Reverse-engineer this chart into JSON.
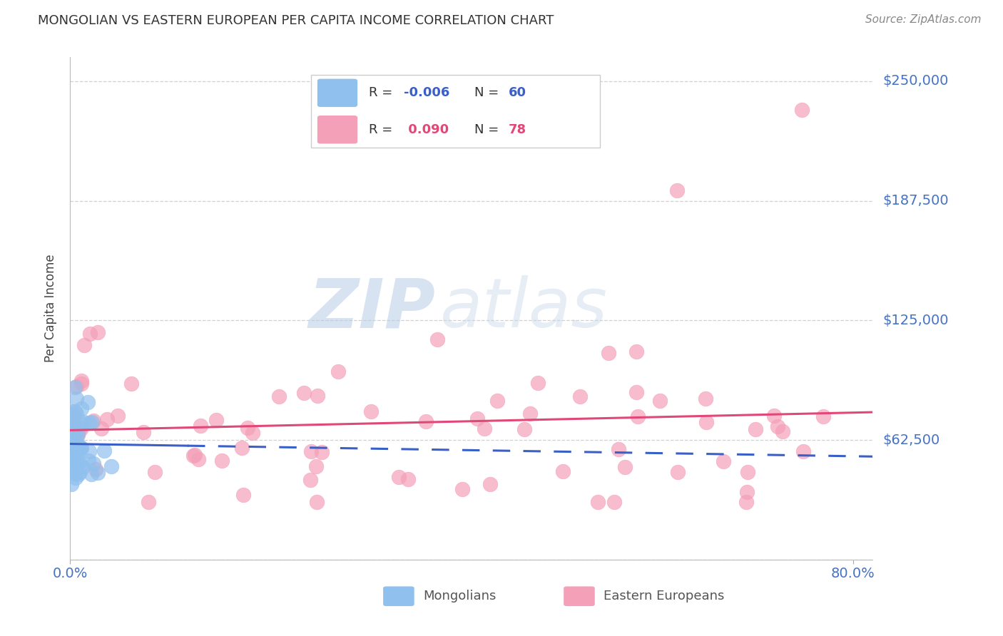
{
  "title": "MONGOLIAN VS EASTERN EUROPEAN PER CAPITA INCOME CORRELATION CHART",
  "source": "Source: ZipAtlas.com",
  "ylabel": "Per Capita Income",
  "ytick_vals": [
    0,
    62500,
    125000,
    187500,
    250000
  ],
  "ytick_labels": [
    "",
    "$62,500",
    "$125,000",
    "$187,500",
    "$250,000"
  ],
  "ylim": [
    0,
    262500
  ],
  "xlim": [
    0.0,
    0.82
  ],
  "mongolian_color": "#90C0ED",
  "eastern_color": "#F4A0B8",
  "mongolian_trend_color": "#3A5FC8",
  "eastern_trend_color": "#E04878",
  "r_mongolian": -0.006,
  "r_eastern": 0.09,
  "n_mongolian": 60,
  "n_eastern": 78,
  "watermark_zip": "ZIP",
  "watermark_atlas": "atlas",
  "background_color": "#FFFFFF",
  "grid_color": "#CCCCCC",
  "title_color": "#333333",
  "axis_label_color": "#4472C4",
  "bottom_legend": [
    "Mongolians",
    "Eastern Europeans"
  ],
  "legend_text_color": "#333333",
  "source_color": "#888888"
}
